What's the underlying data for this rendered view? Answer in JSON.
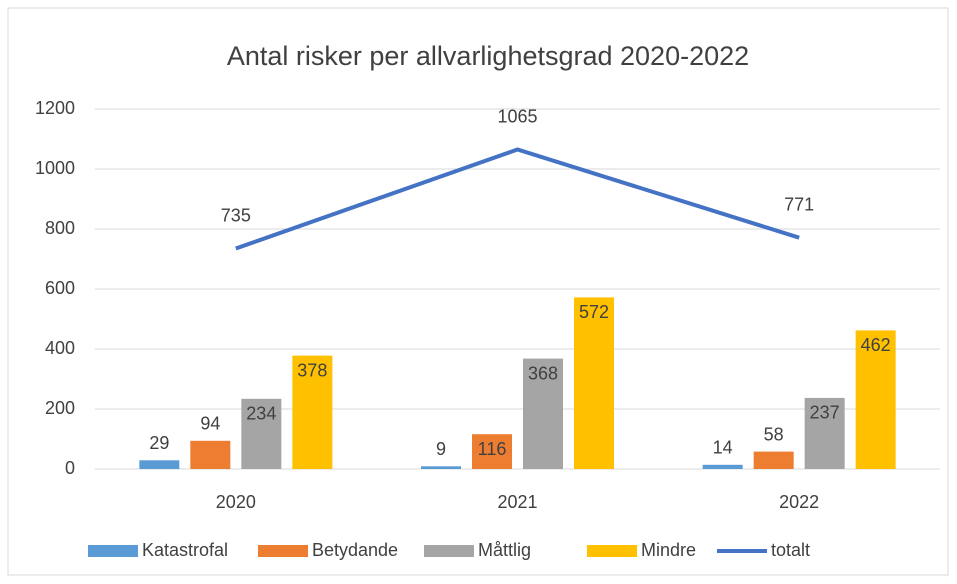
{
  "chart_data": {
    "type": "bar",
    "title": "Antal risker per allvarlighetsgrad 2020-2022",
    "categories": [
      "2020",
      "2021",
      "2022"
    ],
    "series": [
      {
        "name": "Katastrofal",
        "color": "#5b9bd5",
        "values": [
          29,
          9,
          14
        ]
      },
      {
        "name": "Betydande",
        "color": "#ed7d31",
        "values": [
          94,
          116,
          58
        ]
      },
      {
        "name": "Måttlig",
        "color": "#a5a5a5",
        "values": [
          234,
          368,
          237
        ]
      },
      {
        "name": "Mindre",
        "color": "#ffc000",
        "values": [
          378,
          572,
          462
        ]
      },
      {
        "name": "totalt",
        "color": "#4472c4",
        "type": "line",
        "values": [
          735,
          1065,
          771
        ]
      }
    ],
    "ylim": [
      0,
      1200
    ],
    "yticks": [
      0,
      200,
      400,
      600,
      800,
      1000,
      1200
    ],
    "grid": true,
    "legend": "bottom"
  }
}
